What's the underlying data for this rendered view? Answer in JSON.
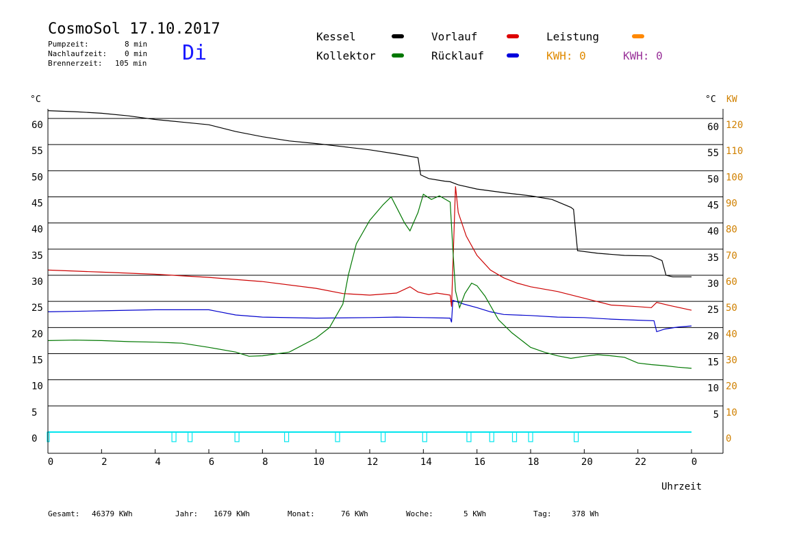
{
  "header": {
    "title": "CosmoSol 17.10.2017",
    "day": "Di",
    "info": [
      {
        "label": "Pumpzeit:",
        "value": "8 min"
      },
      {
        "label": "Nachlaufzeit:",
        "value": "0 min"
      },
      {
        "label": "Brennerzeit:",
        "value": "105 min"
      }
    ]
  },
  "legend": {
    "kessel": "Kessel",
    "vorlauf": "Vorlauf",
    "leistung": "Leistung",
    "kollektor": "Kollektor",
    "ruecklauf": "Rücklauf",
    "kwh1": "KWH: 0",
    "kwh2": "KWH: 0"
  },
  "colors": {
    "kessel": "#000000",
    "vorlauf": "#cc0000",
    "leistung": "#ff8800",
    "kollektor": "#007700",
    "ruecklauf": "#0000cc",
    "kwh2": "#993399",
    "pump": "#00e5ee",
    "kw_axis": "#d08000"
  },
  "footer": [
    {
      "label": "Gesamt:",
      "value": "46379 KWh"
    },
    {
      "label": "Jahr:",
      "value": "1679 KWh"
    },
    {
      "label": "Monat:",
      "value": "76 KWh"
    },
    {
      "label": "Woche:",
      "value": "5 KWh"
    },
    {
      "label": "Tag:",
      "value": "378 Wh"
    }
  ],
  "chart_data": {
    "type": "line",
    "xlabel": "Uhrzeit",
    "ylabel_left": "°C",
    "ylabel_right": "°C",
    "ylabel_right2": "KW",
    "xlim": [
      0,
      24
    ],
    "ylim": [
      0,
      60
    ],
    "x_ticks": [
      "0",
      "2",
      "4",
      "6",
      "8",
      "10",
      "12",
      "14",
      "16",
      "18",
      "20",
      "22",
      "0"
    ],
    "y_ticks_left": [
      "0",
      "5",
      "10",
      "15",
      "20",
      "25",
      "30",
      "35",
      "40",
      "45",
      "50",
      "55",
      "60"
    ],
    "y_ticks_right": [
      "5",
      "10",
      "15",
      "20",
      "25",
      "30",
      "35",
      "40",
      "45",
      "50",
      "55",
      "60"
    ],
    "y_ticks_kw": [
      "0",
      "10",
      "20",
      "30",
      "40",
      "50",
      "60",
      "70",
      "80",
      "90",
      "100",
      "110",
      "120"
    ],
    "grid": true,
    "series": [
      {
        "name": "Kessel",
        "color": "#000000",
        "points": [
          [
            0,
            61.5
          ],
          [
            1,
            61.3
          ],
          [
            2,
            61
          ],
          [
            3,
            60.5
          ],
          [
            4,
            59.8
          ],
          [
            5,
            59.3
          ],
          [
            6,
            58.8
          ],
          [
            7,
            57.5
          ],
          [
            8,
            56.5
          ],
          [
            9,
            55.7
          ],
          [
            10,
            55.2
          ],
          [
            11,
            54.6
          ],
          [
            12,
            54
          ],
          [
            13,
            53.2
          ],
          [
            13.8,
            52.5
          ],
          [
            13.9,
            49.2
          ],
          [
            14.2,
            48.5
          ],
          [
            14.8,
            48
          ],
          [
            15,
            47.9
          ],
          [
            15.3,
            47.3
          ],
          [
            16,
            46.5
          ],
          [
            17,
            45.8
          ],
          [
            18,
            45.2
          ],
          [
            18.8,
            44.5
          ],
          [
            19.5,
            43
          ],
          [
            19.6,
            42.6
          ],
          [
            19.75,
            34.7
          ],
          [
            20.5,
            34.2
          ],
          [
            21.5,
            33.8
          ],
          [
            22.5,
            33.7
          ],
          [
            22.9,
            32.8
          ],
          [
            23.05,
            30
          ],
          [
            23.3,
            29.7
          ],
          [
            24,
            29.7
          ]
        ]
      },
      {
        "name": "Vorlauf",
        "color": "#cc0000",
        "points": [
          [
            0,
            31
          ],
          [
            2,
            30.6
          ],
          [
            4,
            30.2
          ],
          [
            6,
            29.6
          ],
          [
            8,
            28.8
          ],
          [
            10,
            27.5
          ],
          [
            11,
            26.5
          ],
          [
            12,
            26.2
          ],
          [
            13,
            26.6
          ],
          [
            13.5,
            27.8
          ],
          [
            13.8,
            26.8
          ],
          [
            14.2,
            26.3
          ],
          [
            14.5,
            26.6
          ],
          [
            15,
            26.2
          ],
          [
            15.05,
            24
          ],
          [
            15.2,
            47
          ],
          [
            15.3,
            42
          ],
          [
            15.6,
            37.5
          ],
          [
            16,
            33.8
          ],
          [
            16.5,
            31
          ],
          [
            17,
            29.5
          ],
          [
            17.5,
            28.5
          ],
          [
            18,
            27.8
          ],
          [
            19,
            26.9
          ],
          [
            20,
            25.6
          ],
          [
            21,
            24.3
          ],
          [
            22,
            24
          ],
          [
            22.5,
            23.8
          ],
          [
            22.7,
            24.8
          ],
          [
            23.2,
            24.2
          ],
          [
            24,
            23.3
          ]
        ]
      },
      {
        "name": "Rücklauf",
        "color": "#0000cc",
        "points": [
          [
            0,
            23
          ],
          [
            2,
            23.2
          ],
          [
            4,
            23.4
          ],
          [
            6,
            23.4
          ],
          [
            6.3,
            23.1
          ],
          [
            7,
            22.4
          ],
          [
            8,
            22
          ],
          [
            10,
            21.8
          ],
          [
            12,
            21.9
          ],
          [
            13,
            22
          ],
          [
            14,
            21.9
          ],
          [
            15,
            21.8
          ],
          [
            15.05,
            21
          ],
          [
            15.1,
            25.2
          ],
          [
            15.5,
            24.5
          ],
          [
            16,
            23.8
          ],
          [
            16.5,
            23
          ],
          [
            17,
            22.5
          ],
          [
            18,
            22.3
          ],
          [
            19,
            22
          ],
          [
            20,
            21.9
          ],
          [
            21,
            21.6
          ],
          [
            22,
            21.4
          ],
          [
            22.6,
            21.3
          ],
          [
            22.7,
            19.2
          ],
          [
            23,
            19.7
          ],
          [
            23.5,
            20.1
          ],
          [
            24,
            20.3
          ]
        ]
      },
      {
        "name": "Kollektor",
        "color": "#007700",
        "points": [
          [
            0,
            17.5
          ],
          [
            1,
            17.6
          ],
          [
            2,
            17.5
          ],
          [
            3,
            17.3
          ],
          [
            4,
            17.2
          ],
          [
            5,
            17
          ],
          [
            6,
            16.2
          ],
          [
            7,
            15.3
          ],
          [
            7.5,
            14.5
          ],
          [
            8,
            14.6
          ],
          [
            9,
            15.3
          ],
          [
            10,
            18
          ],
          [
            10.5,
            20
          ],
          [
            11,
            24.5
          ],
          [
            11.2,
            30
          ],
          [
            11.5,
            36
          ],
          [
            12,
            40.5
          ],
          [
            12.5,
            43.5
          ],
          [
            12.8,
            45
          ],
          [
            13,
            43
          ],
          [
            13.3,
            40
          ],
          [
            13.5,
            38.5
          ],
          [
            13.8,
            42
          ],
          [
            14,
            45.5
          ],
          [
            14.3,
            44.5
          ],
          [
            14.6,
            45.2
          ],
          [
            15,
            44
          ],
          [
            15.1,
            35
          ],
          [
            15.2,
            27
          ],
          [
            15.35,
            23.8
          ],
          [
            15.55,
            26.5
          ],
          [
            15.8,
            28.5
          ],
          [
            16,
            28
          ],
          [
            16.3,
            26
          ],
          [
            16.8,
            21.5
          ],
          [
            17.3,
            19
          ],
          [
            18,
            16.2
          ],
          [
            18.5,
            15.3
          ],
          [
            19,
            14.6
          ],
          [
            19.5,
            14.1
          ],
          [
            20,
            14.5
          ],
          [
            20.5,
            14.8
          ],
          [
            21,
            14.6
          ],
          [
            21.5,
            14.3
          ],
          [
            22,
            13.2
          ],
          [
            22.5,
            12.9
          ],
          [
            23,
            12.7
          ],
          [
            23.5,
            12.4
          ],
          [
            24,
            12.2
          ]
        ]
      }
    ],
    "pump_on_hours": [
      4.7,
      5.3,
      7.05,
      8.9,
      10.8,
      12.5,
      14.05,
      15.7,
      16.55,
      17.4,
      18,
      19.7
    ]
  }
}
